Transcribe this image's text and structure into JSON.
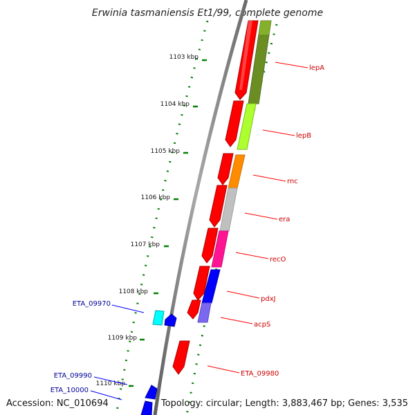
{
  "title": "Erwinia tasmaniensis Et1/99, complete genome",
  "accession": "Accession: NC_010694",
  "topology": "Topology: circular; Length: 3,883,467 bp; Genes: 3,535",
  "kbp_ticks": [
    "1103 kbp",
    "1104 kbp",
    "1105 kbp",
    "1106 kbp",
    "1107 kbp",
    "1108 kbp",
    "1109 kbp",
    "1110 kbp"
  ],
  "forward_labels": [
    "lepA",
    "lepB",
    "rnc",
    "era",
    "recO",
    "pdxJ",
    "acpS",
    "ETA_09980"
  ],
  "reverse_labels": [
    "ETA_09970",
    "ETA_09990",
    "ETA_10000"
  ],
  "colors": {
    "forward_cds": "#ff0000",
    "reverse_cds": "#0000ff",
    "lepA_cog": "#6b8e23",
    "lepB_cog": "#adff2f",
    "rnc_cog": "#ff8c00",
    "era_cog": "#c0c0c0",
    "recO_cog": "#ff1493",
    "pdxJ_cog": "#0000ff",
    "acpS_cog": "#7b68ee",
    "ETA_09970_cog": "#00ffff",
    "backbone": "#808080",
    "dotted_track": "#008000",
    "forward_label": "#cc0000",
    "reverse_label": "#000099"
  }
}
